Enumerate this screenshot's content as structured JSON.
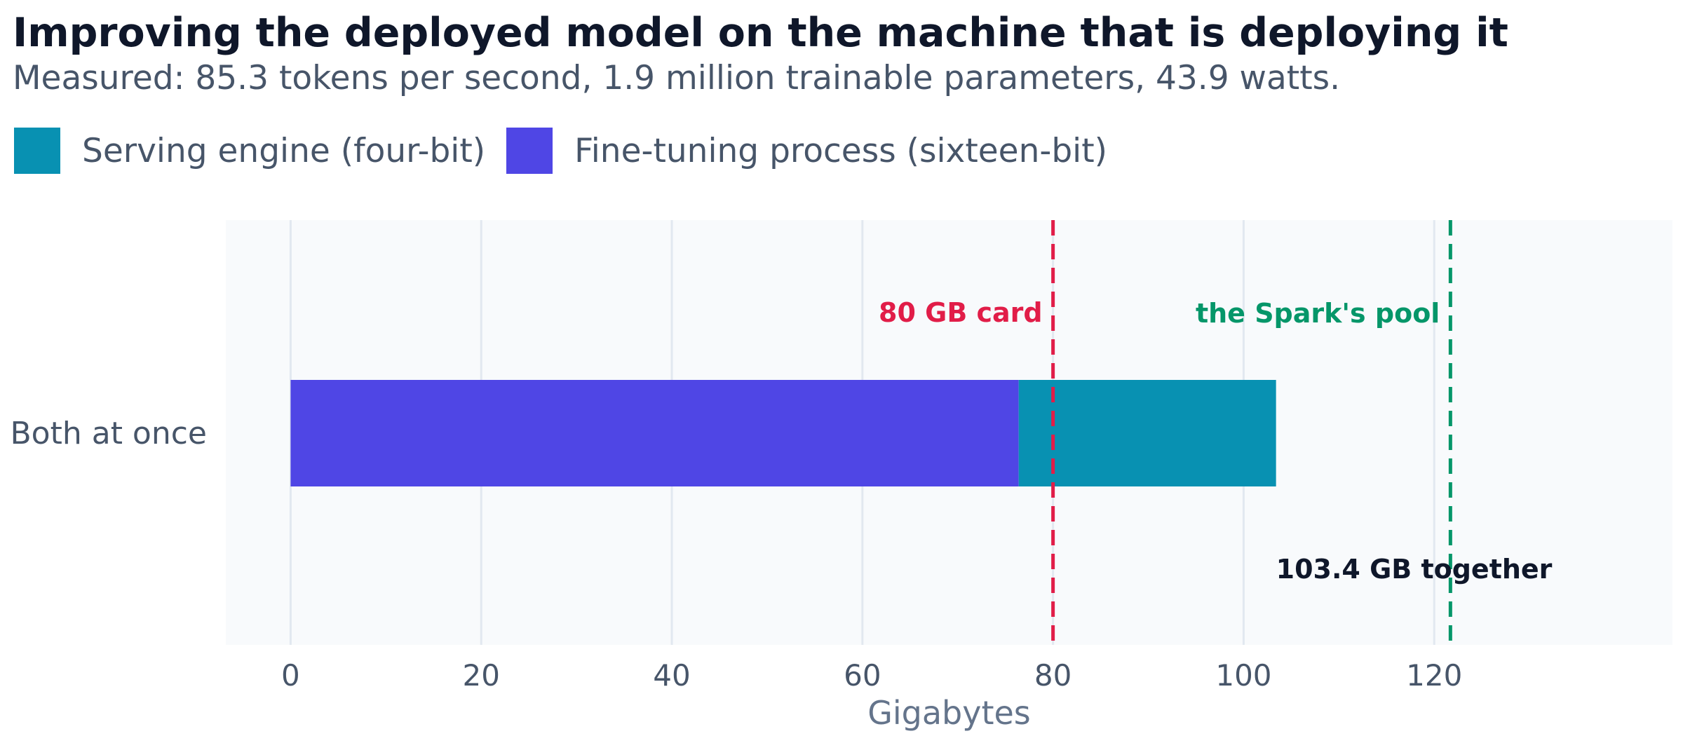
{
  "title": "Improving the deployed model on the machine that is deploying it",
  "subtitle": "Measured: 85.3 tokens per second, 1.9 million trainable parameters, 43.9 watts.",
  "legend": [
    {
      "label": "Serving engine (four-bit)",
      "color": "#0891b2"
    },
    {
      "label": "Fine-tuning process (sixteen-bit)",
      "color": "#4f46e5"
    }
  ],
  "chart_data": {
    "type": "bar",
    "orientation": "horizontal",
    "stacked": true,
    "categories": [
      "Both at once"
    ],
    "series": [
      {
        "name": "Fine-tuning process (sixteen-bit)",
        "values": [
          76.4
        ],
        "color": "#4f46e5"
      },
      {
        "name": "Serving engine (four-bit)",
        "values": [
          27.0
        ],
        "color": "#0891b2"
      }
    ],
    "xlabel": "Gigabytes",
    "ylabel": "",
    "xlim": [
      -6.8,
      145
    ],
    "xticks": [
      0,
      20,
      40,
      60,
      80,
      100,
      120
    ],
    "grid": true,
    "legend_position": "top-left",
    "reference_lines": [
      {
        "value": 80,
        "label": "80 GB card",
        "color": "#e11d48",
        "style": "dashed"
      },
      {
        "value": 121.7,
        "label": "the Spark's pool",
        "color": "#059669",
        "style": "dashed"
      }
    ],
    "annotations": [
      {
        "text": "103.4 GB together",
        "x": 103.4,
        "color": "#0f172a"
      }
    ]
  }
}
